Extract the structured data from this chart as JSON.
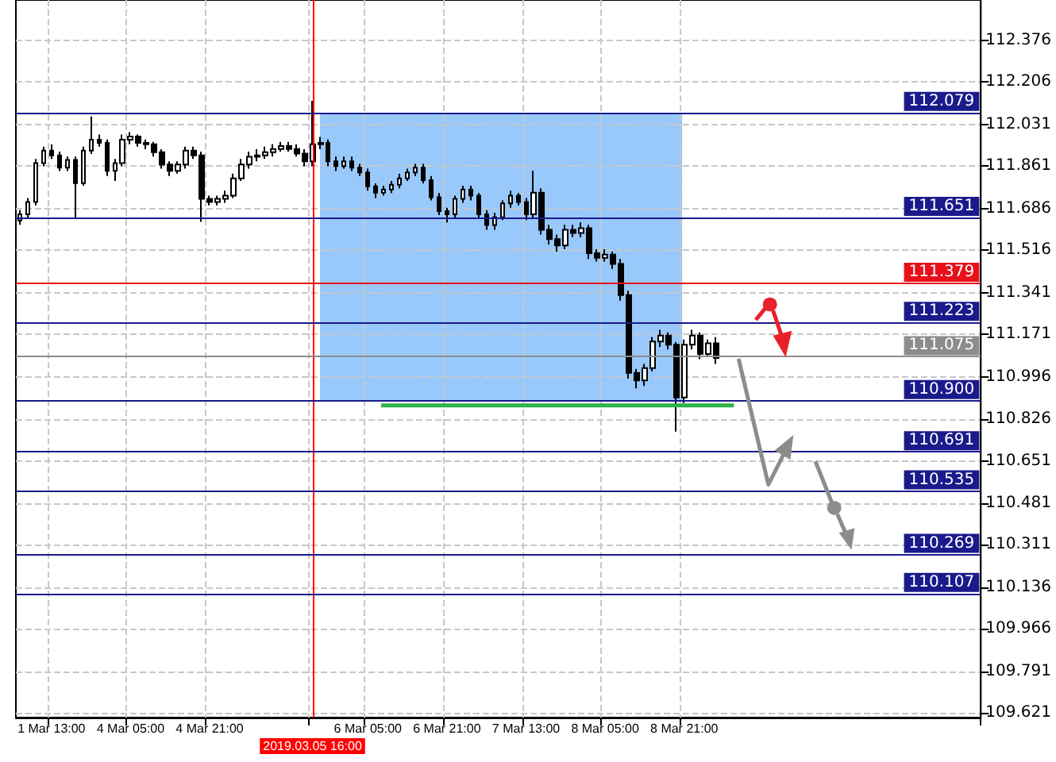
{
  "chart_data": {
    "type": "candlestick",
    "color": "#000000",
    "grid": true,
    "categories": [
      null,
      null,
      null,
      null,
      "1 Mar 13:00",
      null,
      null,
      null,
      null,
      null,
      null,
      null,
      null,
      null,
      "4 Mar 05:00",
      null,
      null,
      null,
      null,
      null,
      null,
      null,
      null,
      null,
      "4 Mar 21:00",
      null,
      null,
      null,
      null,
      null,
      null,
      null,
      null,
      null,
      null,
      null,
      null,
      "2019.03.05 16:00",
      null,
      null,
      null,
      null,
      null,
      null,
      "6 Mar 05:00",
      null,
      null,
      null,
      null,
      null,
      null,
      null,
      null,
      null,
      "6 Mar 21:00",
      null,
      null,
      null,
      null,
      null,
      null,
      null,
      null,
      null,
      "7 Mar 13:00",
      null,
      null,
      null,
      null,
      null,
      null,
      null,
      null,
      null,
      "8 Mar 05:00",
      null,
      null,
      null,
      null,
      null,
      null,
      null,
      null,
      null,
      "8 Mar 21:00",
      null,
      null,
      null,
      null,
      null,
      null,
      null,
      null,
      null,
      null,
      null,
      null,
      null,
      null,
      null,
      null,
      null,
      null,
      null,
      null,
      null,
      null,
      null,
      null,
      null,
      null,
      null,
      null,
      null,
      null,
      null,
      null,
      null,
      null,
      null,
      null,
      null
    ],
    "ohlc": [
      [
        111.638,
        111.68,
        111.62,
        111.663
      ],
      [
        111.663,
        111.73,
        111.65,
        111.714
      ],
      [
        111.714,
        111.89,
        111.7,
        111.873
      ],
      [
        111.873,
        111.94,
        111.86,
        111.924
      ],
      [
        111.924,
        111.95,
        111.89,
        111.905
      ],
      [
        111.905,
        111.92,
        111.84,
        111.854
      ],
      [
        111.854,
        111.9,
        111.84,
        111.886
      ],
      [
        111.886,
        111.9,
        111.651,
        111.791
      ],
      [
        111.791,
        111.94,
        111.78,
        111.924
      ],
      [
        111.924,
        112.064,
        111.91,
        111.969
      ],
      [
        111.969,
        111.99,
        111.94,
        111.956
      ],
      [
        111.956,
        111.97,
        111.82,
        111.841
      ],
      [
        111.841,
        111.89,
        111.8,
        111.873
      ],
      [
        111.873,
        111.99,
        111.86,
        111.969
      ],
      [
        111.969,
        112.0,
        111.95,
        111.982
      ],
      [
        111.982,
        111.99,
        111.94,
        111.956
      ],
      [
        111.956,
        111.97,
        111.93,
        111.95
      ],
      [
        111.95,
        111.96,
        111.9,
        111.918
      ],
      [
        111.918,
        111.93,
        111.85,
        111.867
      ],
      [
        111.867,
        111.88,
        111.82,
        111.841
      ],
      [
        111.841,
        111.88,
        111.83,
        111.867
      ],
      [
        111.867,
        111.94,
        111.85,
        111.924
      ],
      [
        111.924,
        111.94,
        111.89,
        111.905
      ],
      [
        111.905,
        111.92,
        111.632,
        111.727
      ],
      [
        111.727,
        111.74,
        111.7,
        111.714
      ],
      [
        111.714,
        111.74,
        111.7,
        111.727
      ],
      [
        111.727,
        111.76,
        111.71,
        111.74
      ],
      [
        111.74,
        111.83,
        111.73,
        111.81
      ],
      [
        111.81,
        111.89,
        111.8,
        111.867
      ],
      [
        111.867,
        111.92,
        111.85,
        111.899
      ],
      [
        111.899,
        111.93,
        111.88,
        111.905
      ],
      [
        111.905,
        111.94,
        111.89,
        111.918
      ],
      [
        111.918,
        111.95,
        111.9,
        111.931
      ],
      [
        111.931,
        111.96,
        111.92,
        111.943
      ],
      [
        111.943,
        111.96,
        111.92,
        111.931
      ],
      [
        111.931,
        111.95,
        111.9,
        111.912
      ],
      [
        111.912,
        111.93,
        111.86,
        111.88
      ],
      [
        111.88,
        112.128,
        111.86,
        111.95
      ],
      [
        111.95,
        111.98,
        111.93,
        111.956
      ],
      [
        111.956,
        111.97,
        111.86,
        111.88
      ],
      [
        111.88,
        111.9,
        111.84,
        111.861
      ],
      [
        111.861,
        111.9,
        111.85,
        111.88
      ],
      [
        111.88,
        111.9,
        111.84,
        111.854
      ],
      [
        111.854,
        111.87,
        111.82,
        111.835
      ],
      [
        111.835,
        111.85,
        111.76,
        111.778
      ],
      [
        111.778,
        111.79,
        111.73,
        111.752
      ],
      [
        111.752,
        111.78,
        111.74,
        111.765
      ],
      [
        111.765,
        111.8,
        111.75,
        111.784
      ],
      [
        111.784,
        111.83,
        111.77,
        111.81
      ],
      [
        111.81,
        111.85,
        111.8,
        111.835
      ],
      [
        111.835,
        111.87,
        111.82,
        111.854
      ],
      [
        111.854,
        111.87,
        111.79,
        111.803
      ],
      [
        111.803,
        111.82,
        111.72,
        111.733
      ],
      [
        111.733,
        111.75,
        111.66,
        111.676
      ],
      [
        111.676,
        111.69,
        111.63,
        111.663
      ],
      [
        111.663,
        111.74,
        111.65,
        111.727
      ],
      [
        111.727,
        111.78,
        111.71,
        111.765
      ],
      [
        111.765,
        111.78,
        111.72,
        111.74
      ],
      [
        111.74,
        111.75,
        111.65,
        111.663
      ],
      [
        111.663,
        111.68,
        111.6,
        111.619
      ],
      [
        111.619,
        111.67,
        111.6,
        111.651
      ],
      [
        111.651,
        111.72,
        111.64,
        111.708
      ],
      [
        111.708,
        111.76,
        111.69,
        111.74
      ],
      [
        111.74,
        111.75,
        111.7,
        111.714
      ],
      [
        111.714,
        111.73,
        111.64,
        111.663
      ],
      [
        111.663,
        111.841,
        111.65,
        111.752
      ],
      [
        111.752,
        111.77,
        111.58,
        111.6
      ],
      [
        111.6,
        111.62,
        111.54,
        111.562
      ],
      [
        111.562,
        111.58,
        111.51,
        111.536
      ],
      [
        111.536,
        111.62,
        111.52,
        111.6
      ],
      [
        111.6,
        111.62,
        111.57,
        111.587
      ],
      [
        111.587,
        111.63,
        111.57,
        111.606
      ],
      [
        111.606,
        111.62,
        111.48,
        111.504
      ],
      [
        111.504,
        111.52,
        111.47,
        111.485
      ],
      [
        111.485,
        111.52,
        111.47,
        111.498
      ],
      [
        111.498,
        111.51,
        111.44,
        111.46
      ],
      [
        111.46,
        111.48,
        111.31,
        111.332
      ],
      [
        111.332,
        111.35,
        110.99,
        111.014
      ],
      [
        111.014,
        111.03,
        110.95,
        110.983
      ],
      [
        110.983,
        111.05,
        110.96,
        111.033
      ],
      [
        111.033,
        111.16,
        111.02,
        111.142
      ],
      [
        111.142,
        111.19,
        111.12,
        111.167
      ],
      [
        111.167,
        111.18,
        111.11,
        111.129
      ],
      [
        111.129,
        111.14,
        110.773,
        110.913
      ],
      [
        110.913,
        111.15,
        110.89,
        111.129
      ],
      [
        111.129,
        111.19,
        111.11,
        111.167
      ],
      [
        111.167,
        111.18,
        111.07,
        111.091
      ],
      [
        111.091,
        111.15,
        111.08,
        111.135
      ],
      [
        111.135,
        111.16,
        111.05,
        111.075
      ],
      null,
      null,
      null,
      null,
      null,
      null,
      null,
      null,
      null,
      null,
      null,
      null,
      null,
      null,
      null,
      null,
      null,
      null,
      null,
      null,
      null,
      null,
      null,
      null,
      null,
      null,
      null,
      null,
      null,
      null,
      null,
      null,
      null
    ],
    "ylim": [
      109.602,
      112.541
    ],
    "yticks": [
      109.621,
      109.791,
      109.966,
      110.136,
      110.311,
      110.481,
      110.651,
      110.826,
      110.996,
      111.171,
      111.341,
      111.516,
      111.686,
      111.861,
      112.031,
      112.206,
      112.376
    ],
    "ref_lines": [
      {
        "axis": "x",
        "value": "2019.03.05 16:00",
        "label": null,
        "color": "#ff0000"
      },
      {
        "axis": "y",
        "value": 112.079,
        "label": "112.079",
        "color": "#1a1a8c"
      },
      {
        "axis": "y",
        "value": 111.651,
        "label": "111.651",
        "color": "#1a1a8c"
      },
      {
        "axis": "y",
        "value": 111.379,
        "label": "111.379",
        "color": "#e8101a"
      },
      {
        "axis": "y",
        "value": 111.223,
        "label": "111.223",
        "color": "#1a1a8c"
      },
      {
        "axis": "y",
        "value": 111.075,
        "label": "111.075",
        "color": "#8c8c8c"
      },
      {
        "axis": "y",
        "value": 110.9,
        "label": "110.900",
        "color": "#1a1a8c"
      },
      {
        "axis": "y",
        "value": 110.691,
        "label": "110.691",
        "color": "#1a1a8c"
      },
      {
        "axis": "y",
        "value": 110.535,
        "label": "110.535",
        "color": "#1a1a8c"
      },
      {
        "axis": "y",
        "value": 110.269,
        "label": "110.269",
        "color": "#1a1a8c"
      },
      {
        "axis": "y",
        "value": 110.107,
        "label": "110.107",
        "color": "#1a1a8c"
      }
    ]
  }
}
